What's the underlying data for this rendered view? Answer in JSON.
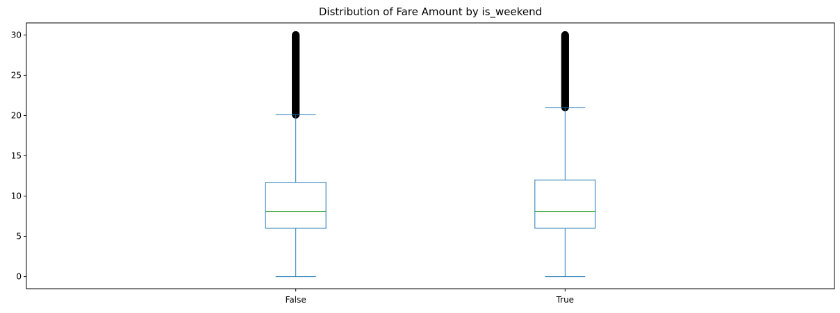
{
  "chart_data": {
    "type": "box",
    "title": "Distribution of Fare Amount by is_weekend",
    "xlabel": "",
    "ylabel": "",
    "categories": [
      "False",
      "True"
    ],
    "ylim": [
      -1.5,
      31.5
    ],
    "yticks": [
      0,
      5,
      10,
      15,
      20,
      25,
      30
    ],
    "grid": false,
    "boxes": [
      {
        "category": "False",
        "whisker_low": 0,
        "q1": 6.0,
        "median": 8.1,
        "q3": 11.7,
        "whisker_high": 20.1,
        "outliers_range": [
          20.1,
          30.0
        ]
      },
      {
        "category": "True",
        "whisker_low": 0,
        "q1": 6.0,
        "median": 8.1,
        "q3": 12.0,
        "whisker_high": 21.0,
        "outliers_range": [
          21.0,
          30.0
        ]
      }
    ],
    "colors": {
      "box": "#1f77b4",
      "median": "#2ca02c",
      "outlier": "#000000",
      "axes": "#000000"
    }
  }
}
